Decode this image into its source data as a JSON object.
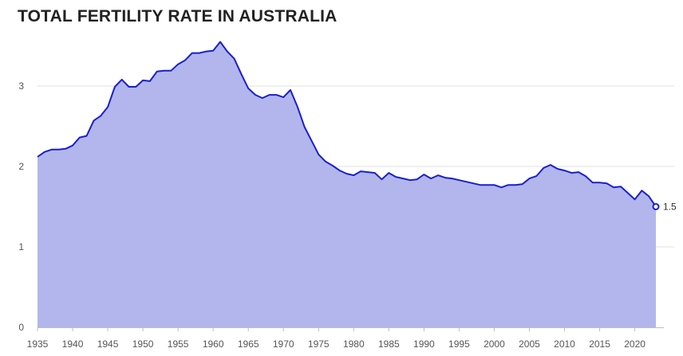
{
  "title": "TOTAL FERTILITY RATE IN AUSTRALIA",
  "colors": {
    "line": "#1a1fd0",
    "area": "#b2b6ed",
    "text": "#222222",
    "grid": "#e2e2e2"
  },
  "chart_data": {
    "type": "area",
    "title": "TOTAL FERTILITY RATE IN AUSTRALIA",
    "xlabel": "",
    "ylabel": "",
    "xlim": [
      1935,
      2023
    ],
    "ylim": [
      0,
      3.6
    ],
    "y_ticks": [
      0,
      1,
      2,
      3
    ],
    "x_ticks": [
      1935,
      1940,
      1945,
      1950,
      1955,
      1960,
      1965,
      1970,
      1975,
      1980,
      1985,
      1990,
      1995,
      2000,
      2005,
      2010,
      2015,
      2020
    ],
    "grid": "horizontal",
    "end_label": "1.5",
    "x": [
      1935,
      1936,
      1937,
      1938,
      1939,
      1940,
      1941,
      1942,
      1943,
      1944,
      1945,
      1946,
      1947,
      1948,
      1949,
      1950,
      1951,
      1952,
      1953,
      1954,
      1955,
      1956,
      1957,
      1958,
      1959,
      1960,
      1961,
      1962,
      1963,
      1964,
      1965,
      1966,
      1967,
      1968,
      1969,
      1970,
      1971,
      1972,
      1973,
      1974,
      1975,
      1976,
      1977,
      1978,
      1979,
      1980,
      1981,
      1982,
      1983,
      1984,
      1985,
      1986,
      1987,
      1988,
      1989,
      1990,
      1991,
      1992,
      1993,
      1994,
      1995,
      1996,
      1997,
      1998,
      1999,
      2000,
      2001,
      2002,
      2003,
      2004,
      2005,
      2006,
      2007,
      2008,
      2009,
      2010,
      2011,
      2012,
      2013,
      2014,
      2015,
      2016,
      2017,
      2018,
      2019,
      2020,
      2021,
      2022,
      2023
    ],
    "values": [
      2.12,
      2.18,
      2.21,
      2.21,
      2.22,
      2.26,
      2.36,
      2.38,
      2.57,
      2.63,
      2.74,
      2.99,
      3.08,
      2.99,
      2.99,
      3.07,
      3.06,
      3.18,
      3.19,
      3.19,
      3.27,
      3.32,
      3.41,
      3.41,
      3.43,
      3.44,
      3.55,
      3.43,
      3.34,
      3.15,
      2.97,
      2.89,
      2.85,
      2.89,
      2.89,
      2.86,
      2.95,
      2.74,
      2.49,
      2.32,
      2.15,
      2.06,
      2.01,
      1.95,
      1.91,
      1.89,
      1.94,
      1.93,
      1.92,
      1.84,
      1.92,
      1.87,
      1.85,
      1.83,
      1.84,
      1.9,
      1.85,
      1.89,
      1.86,
      1.85,
      1.83,
      1.81,
      1.79,
      1.77,
      1.77,
      1.77,
      1.74,
      1.77,
      1.77,
      1.78,
      1.85,
      1.88,
      1.98,
      2.02,
      1.97,
      1.95,
      1.92,
      1.93,
      1.88,
      1.8,
      1.8,
      1.79,
      1.74,
      1.75,
      1.67,
      1.59,
      1.7,
      1.63,
      1.5
    ]
  }
}
